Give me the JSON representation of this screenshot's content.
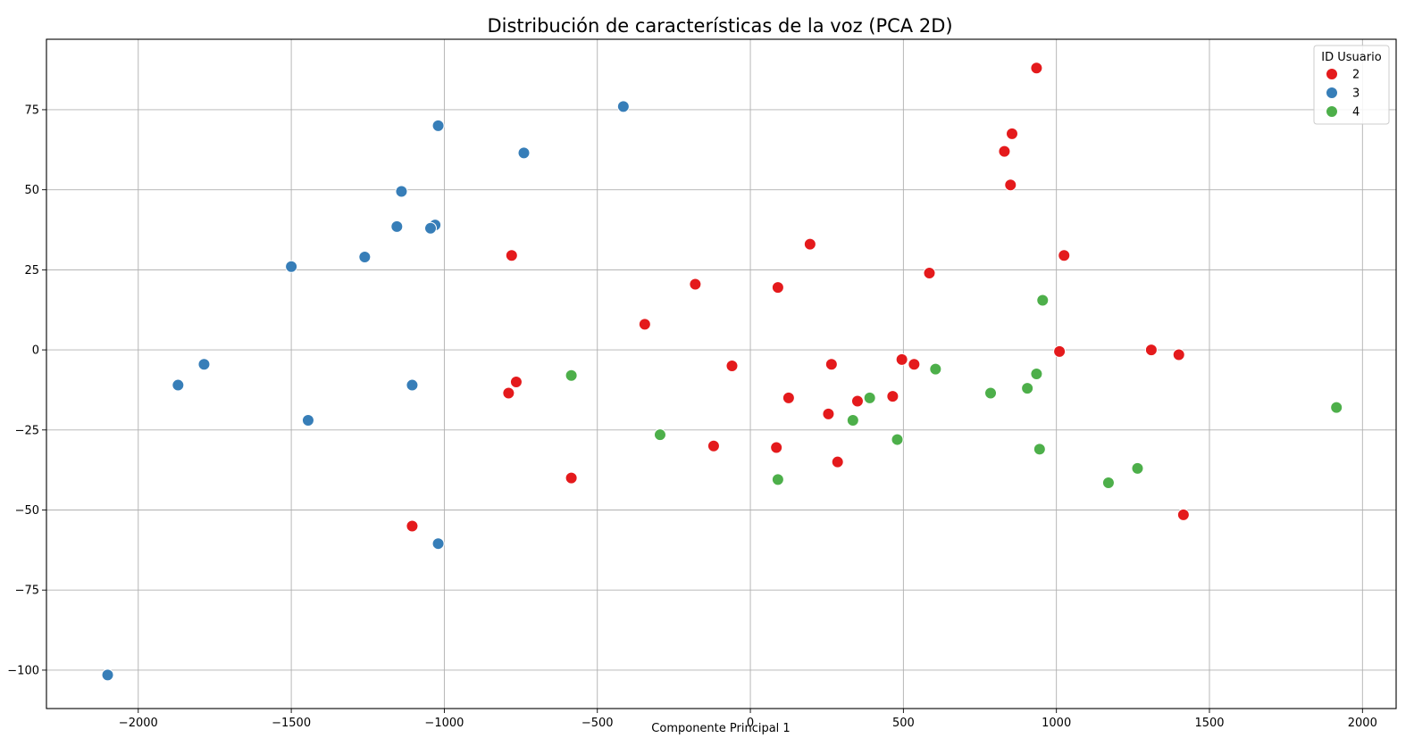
{
  "chart_data": {
    "type": "scatter",
    "title": "Distribución de características de la voz (PCA 2D)",
    "xlabel": "Componente Principal 1",
    "ylabel": "",
    "xlim": [
      -2300,
      2110
    ],
    "ylim": [
      -112,
      97
    ],
    "xticks": [
      -2000,
      -1500,
      -1000,
      -500,
      0,
      500,
      1000,
      1500,
      2000
    ],
    "yticks": [
      -100,
      -75,
      -50,
      -25,
      0,
      25,
      50,
      75
    ],
    "grid": true,
    "legend": {
      "title": "ID Usuario",
      "placement": "top-right"
    },
    "series": [
      {
        "name": "2",
        "color": "#e41a1c",
        "points": [
          [
            935,
            88
          ],
          [
            855,
            67.5
          ],
          [
            830,
            62
          ],
          [
            850,
            51.5
          ],
          [
            1025,
            29.5
          ],
          [
            195,
            33
          ],
          [
            585,
            24
          ],
          [
            -780,
            29.5
          ],
          [
            -180,
            20.5
          ],
          [
            90,
            19.5
          ],
          [
            -345,
            8
          ],
          [
            1010,
            -0.5
          ],
          [
            1310,
            0
          ],
          [
            1400,
            -1.5
          ],
          [
            495,
            -3
          ],
          [
            535,
            -4.5
          ],
          [
            265,
            -4.5
          ],
          [
            -60,
            -5
          ],
          [
            -765,
            -10
          ],
          [
            -790,
            -13.5
          ],
          [
            125,
            -15
          ],
          [
            350,
            -16
          ],
          [
            465,
            -14.5
          ],
          [
            255,
            -20
          ],
          [
            -120,
            -30
          ],
          [
            85,
            -30.5
          ],
          [
            285,
            -35
          ],
          [
            -585,
            -40
          ],
          [
            1415,
            -51.5
          ],
          [
            -1105,
            -55
          ]
        ]
      },
      {
        "name": "3",
        "color": "#377eb8",
        "points": [
          [
            -415,
            76
          ],
          [
            -1020,
            70
          ],
          [
            -740,
            61.5
          ],
          [
            -1140,
            49.5
          ],
          [
            -1030,
            39
          ],
          [
            -1045,
            38
          ],
          [
            -1155,
            38.5
          ],
          [
            -1260,
            29
          ],
          [
            -1500,
            26
          ],
          [
            -1785,
            -4.5
          ],
          [
            -1870,
            -11
          ],
          [
            -1105,
            -11
          ],
          [
            -1445,
            -22
          ],
          [
            -1020,
            -60.5
          ],
          [
            -2100,
            -101.5
          ]
        ]
      },
      {
        "name": "4",
        "color": "#4daf4a",
        "points": [
          [
            955,
            15.5
          ],
          [
            605,
            -6
          ],
          [
            -585,
            -8
          ],
          [
            935,
            -7.5
          ],
          [
            905,
            -12
          ],
          [
            785,
            -13.5
          ],
          [
            390,
            -15
          ],
          [
            335,
            -22
          ],
          [
            -295,
            -26.5
          ],
          [
            480,
            -28
          ],
          [
            945,
            -31
          ],
          [
            1915,
            -18
          ],
          [
            1265,
            -37
          ],
          [
            1170,
            -41.5
          ],
          [
            90,
            -40.5
          ]
        ]
      }
    ]
  }
}
